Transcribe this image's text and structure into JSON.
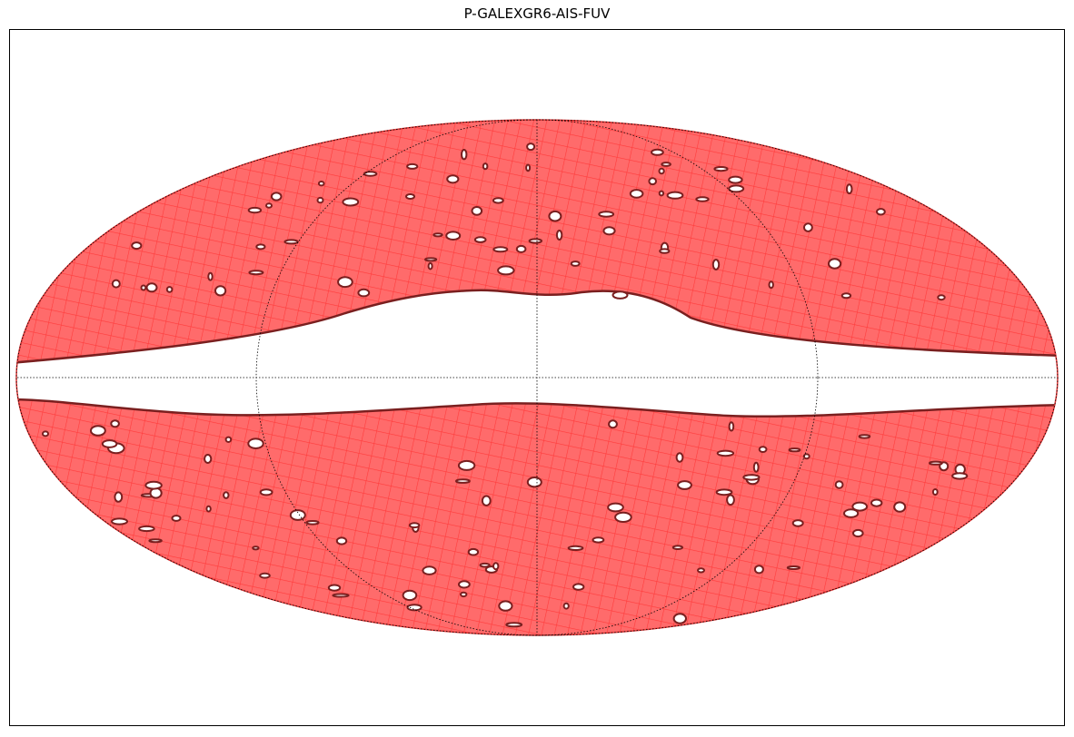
{
  "figure": {
    "title": "P-GALEXGR6-AIS-FUV"
  },
  "map": {
    "projection": "mollweide",
    "graticule": "dotted",
    "coverage_fill": "#ff6666",
    "coverage_grid": "#ff3333",
    "coverage_edge": "#7a1f1f",
    "empty_color": "#ffffff",
    "uncovered_band": "galactic plane (low-latitude gap)"
  }
}
